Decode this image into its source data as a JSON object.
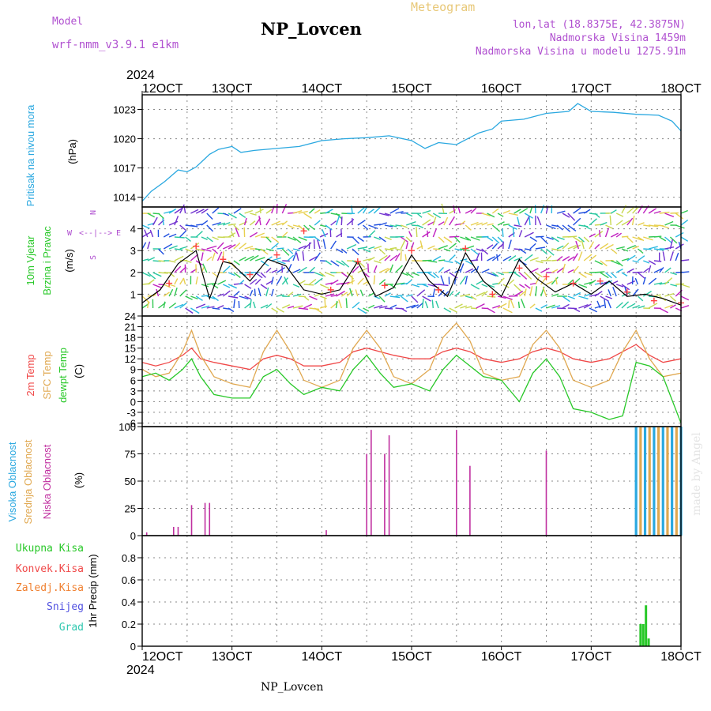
{
  "header": {
    "model_label": "Model",
    "model_name": "wrf-nmm_v3.9.1  e1km",
    "title": "NP_Lovcen",
    "meteogram_label": "Meteogram",
    "lonlat": "lon,lat (18.8375E, 42.3875N)",
    "elevation": "Nadmorska Visina 1459m",
    "model_elevation": "Nadmorska Visina u modelu 1275.91m",
    "year_top": "2024",
    "footer_station": "NP_Lovcen",
    "watermark": "made by Angel"
  },
  "colors": {
    "pressure": "#2aa8e0",
    "wind_speed": "#000000",
    "wind_gust": "#ff4040",
    "t2m": "#f04848",
    "tsfc": "#e0a850",
    "dewpoint": "#28c828",
    "cloud_high": "#2aa8e0",
    "cloud_mid": "#e0a850",
    "cloud_low": "#c030a0",
    "precip_total": "#28c828",
    "precip_conv": "#f04848",
    "precip_frz": "#f08030",
    "precip_snow": "#5050e0",
    "precip_grad": "#30c8b0",
    "axis_label_purple": "#b050d0"
  },
  "chart_data": [
    {
      "type": "line",
      "panel": "pressure",
      "ylabel_colored": "Pritisak na nivou mora",
      "ylabel_unit": "(hPa)",
      "ylim": [
        1013,
        1024.5
      ],
      "yticks": [
        1014,
        1017,
        1020,
        1023
      ],
      "x_labels": [
        "12OCT",
        "13OCT",
        "14OCT",
        "15OCT",
        "16OCT",
        "17OCT",
        "18OCT"
      ],
      "x_year": "2024",
      "grid": true,
      "x": [
        12.0,
        12.1,
        12.25,
        12.4,
        12.5,
        12.6,
        12.75,
        12.85,
        13.0,
        13.1,
        13.25,
        13.5,
        13.75,
        14.0,
        14.25,
        14.5,
        14.75,
        15.0,
        15.15,
        15.3,
        15.5,
        15.75,
        15.9,
        16.0,
        16.25,
        16.5,
        16.75,
        16.85,
        17.0,
        17.25,
        17.5,
        17.75,
        17.9,
        18.0
      ],
      "y": [
        1013.6,
        1014.6,
        1015.6,
        1016.8,
        1016.6,
        1017.1,
        1018.4,
        1018.9,
        1019.2,
        1018.6,
        1018.8,
        1019.0,
        1019.2,
        1019.8,
        1020.0,
        1020.1,
        1020.3,
        1019.8,
        1019.0,
        1019.6,
        1019.4,
        1020.6,
        1021.0,
        1021.8,
        1022.0,
        1022.6,
        1022.8,
        1023.6,
        1022.8,
        1022.7,
        1022.5,
        1022.4,
        1021.8,
        1020.8
      ],
      "series": [
        {
          "name": "Pritisak na nivou mora",
          "color_key": "pressure"
        }
      ]
    },
    {
      "type": "line",
      "panel": "wind",
      "ylabel_colored": "10m Vjetar",
      "ylabel_colored2": "Brzina i Pravac",
      "ylabel_unit": "(m/s)",
      "direction_legend": [
        "N",
        "W",
        "<--|-->",
        "E",
        "S"
      ],
      "ylim": [
        0,
        5
      ],
      "yticks": [
        1,
        2,
        3,
        4
      ],
      "grid": true,
      "x": [
        12.0,
        12.2,
        12.4,
        12.6,
        12.75,
        12.9,
        13.0,
        13.2,
        13.4,
        13.6,
        13.8,
        14.0,
        14.2,
        14.4,
        14.6,
        14.8,
        15.0,
        15.2,
        15.4,
        15.6,
        15.8,
        16.0,
        16.2,
        16.4,
        16.6,
        16.8,
        17.0,
        17.2,
        17.4,
        17.6,
        17.8,
        18.0
      ],
      "y": [
        0.6,
        1.2,
        2.4,
        3.0,
        0.8,
        2.5,
        2.4,
        1.6,
        2.6,
        2.3,
        1.2,
        1.0,
        1.2,
        2.5,
        0.9,
        1.3,
        2.8,
        1.6,
        0.9,
        2.9,
        1.6,
        0.9,
        2.6,
        1.7,
        1.1,
        1.5,
        1.0,
        1.6,
        0.9,
        1.0,
        0.8,
        0.5
      ],
      "gust_x": [
        12.3,
        12.6,
        12.9,
        13.2,
        13.5,
        13.8,
        14.1,
        14.4,
        14.7,
        15.0,
        15.3,
        15.6,
        15.9,
        16.2,
        16.5,
        16.8,
        17.1,
        17.4,
        17.7,
        18.0
      ],
      "gust_y": [
        1.5,
        3.2,
        2.6,
        1.9,
        2.8,
        3.9,
        1.2,
        2.5,
        1.4,
        3.0,
        1.2,
        3.1,
        1.0,
        2.2,
        1.8,
        1.5,
        1.6,
        1.1,
        0.7,
        0.6
      ],
      "series": [
        {
          "name": "Brzina",
          "color_key": "wind_speed"
        }
      ]
    },
    {
      "type": "line",
      "panel": "temperature",
      "ylabel_t2m": "2m Temp",
      "ylabel_tsfc": "SFC Temp",
      "ylabel_td": "dewpt Temp",
      "ylabel_unit": "(C)",
      "ylim": [
        -7,
        24
      ],
      "yticks": [
        -6,
        -3,
        0,
        3,
        6,
        9,
        12,
        15,
        18,
        21,
        24
      ],
      "grid": true,
      "x": [
        12.0,
        12.15,
        12.3,
        12.45,
        12.55,
        12.65,
        12.8,
        13.0,
        13.2,
        13.35,
        13.5,
        13.65,
        13.8,
        14.0,
        14.2,
        14.35,
        14.5,
        14.65,
        14.8,
        15.0,
        15.2,
        15.35,
        15.5,
        15.65,
        15.8,
        16.0,
        16.2,
        16.35,
        16.5,
        16.65,
        16.8,
        17.0,
        17.2,
        17.35,
        17.5,
        17.65,
        17.8,
        18.0
      ],
      "series": [
        {
          "name": "2m Temp",
          "color_key": "t2m",
          "values": [
            11,
            10,
            11,
            13,
            15,
            12,
            11,
            10,
            9,
            12,
            13,
            12,
            10,
            10,
            11,
            14,
            15,
            14,
            13,
            12,
            12,
            14,
            15,
            14,
            12,
            11,
            12,
            14,
            15,
            14,
            12,
            11,
            12,
            14,
            16,
            13,
            11,
            12
          ]
        },
        {
          "name": "SFC Temp",
          "color_key": "tsfc",
          "values": [
            9,
            7,
            8,
            14,
            20,
            13,
            7,
            5,
            4,
            14,
            20,
            14,
            6,
            4,
            6,
            15,
            20,
            15,
            7,
            5,
            9,
            18,
            22,
            17,
            8,
            6,
            7,
            16,
            20,
            15,
            6,
            4,
            6,
            14,
            20,
            12,
            7,
            8
          ]
        },
        {
          "name": "dewpt Temp",
          "color_key": "dewpoint",
          "values": [
            7,
            8,
            6,
            9,
            12,
            7,
            2,
            1,
            1,
            7,
            9,
            5,
            2,
            4,
            3,
            9,
            13,
            8,
            4,
            5,
            3,
            9,
            13,
            10,
            7,
            6,
            0,
            8,
            12,
            7,
            -2,
            -3,
            -5,
            -4,
            11,
            10,
            7,
            -6
          ]
        }
      ]
    },
    {
      "type": "bar",
      "panel": "cloud",
      "ylabel_high": "Visoka Oblacnost",
      "ylabel_mid": "Srednja Oblacnost",
      "ylabel_low": "Niska Oblacnost",
      "ylabel_unit": "(%)",
      "ylim": [
        0,
        100
      ],
      "yticks": [
        0,
        25,
        50,
        75,
        100
      ],
      "grid": true,
      "low_x": [
        12.05,
        12.35,
        12.4,
        12.55,
        12.7,
        12.75,
        14.05,
        14.5,
        14.55,
        14.7,
        14.75,
        15.5,
        15.65,
        16.5
      ],
      "low_values": [
        3,
        8,
        8,
        28,
        30,
        30,
        5,
        75,
        97,
        75,
        92,
        97,
        64,
        78
      ],
      "high_x": [
        17.5,
        17.55,
        17.6,
        17.65,
        17.7,
        17.75,
        17.8,
        17.85,
        17.9,
        17.95,
        18.0
      ],
      "high_values": [
        100,
        100,
        100,
        100,
        100,
        100,
        100,
        100,
        100,
        100,
        100
      ],
      "series": [
        {
          "name": "Visoka Oblacnost",
          "color_key": "cloud_high"
        },
        {
          "name": "Srednja Oblacnost",
          "color_key": "cloud_mid"
        },
        {
          "name": "Niska Oblacnost",
          "color_key": "cloud_low"
        }
      ]
    },
    {
      "type": "bar",
      "panel": "precip",
      "ylabel": "1hr Precip (mm)",
      "legend": [
        "Ukupna Kisa",
        "Konvek.Kisa",
        "Zaledj.Kisa",
        "Snijeg",
        "Grad"
      ],
      "ylim": [
        0,
        1.0
      ],
      "yticks": [
        0,
        0.2,
        0.4,
        0.6,
        0.8
      ],
      "grid": true,
      "x": [
        17.55,
        17.58,
        17.61,
        17.64
      ],
      "values": [
        0.2,
        0.2,
        0.37,
        0.07
      ],
      "series": [
        {
          "name": "Ukupna Kisa",
          "color_key": "precip_total"
        },
        {
          "name": "Konvek.Kisa",
          "color_key": "precip_conv"
        },
        {
          "name": "Zaledj.Kisa",
          "color_key": "precip_frz"
        },
        {
          "name": "Snijeg",
          "color_key": "precip_snow"
        },
        {
          "name": "Grad",
          "color_key": "precip_grad"
        }
      ]
    }
  ]
}
